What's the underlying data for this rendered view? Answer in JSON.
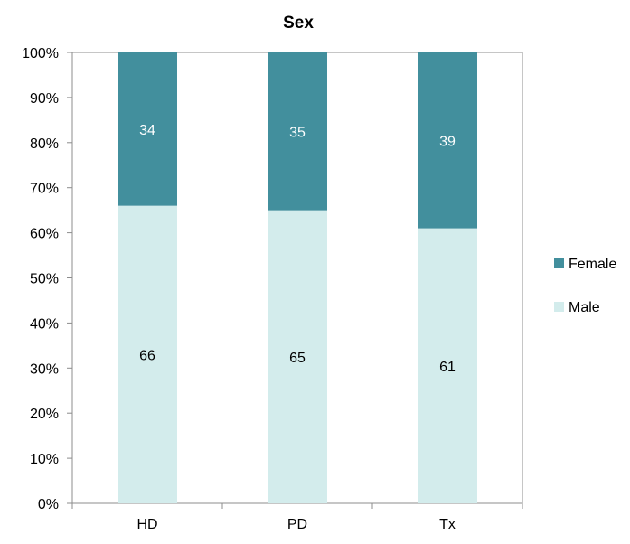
{
  "chart_data": {
    "type": "bar",
    "stacked": true,
    "percent_stacked": true,
    "title": "Sex",
    "categories": [
      "HD",
      "PD",
      "Tx"
    ],
    "series": [
      {
        "name": "Male",
        "values": [
          66,
          65,
          61
        ],
        "color": "#d3ecec"
      },
      {
        "name": "Female",
        "values": [
          34,
          35,
          39
        ],
        "color": "#428f9d"
      }
    ],
    "data_label_colors": {
      "Male": "#000000",
      "Female": "#ffffff"
    },
    "ylim": [
      0,
      100
    ],
    "yticks": [
      "0%",
      "10%",
      "20%",
      "30%",
      "40%",
      "50%",
      "60%",
      "70%",
      "80%",
      "90%",
      "100%"
    ],
    "grid": false,
    "legend": {
      "position": "right",
      "order": [
        "Female",
        "Male"
      ]
    }
  }
}
